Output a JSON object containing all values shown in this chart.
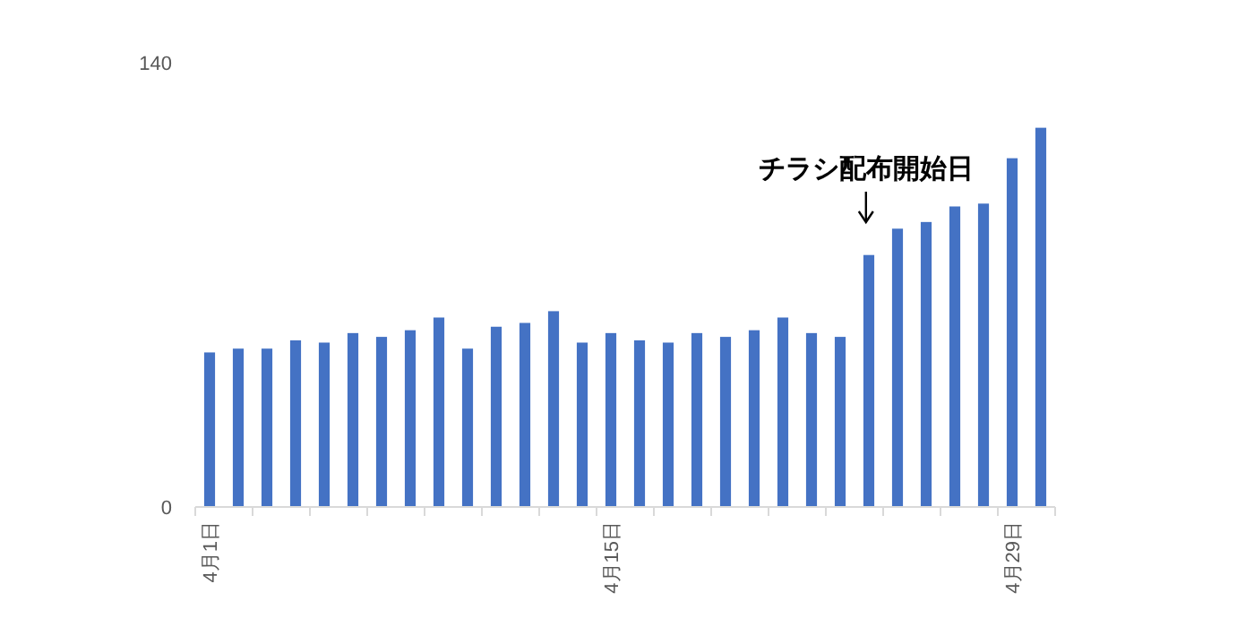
{
  "chart_data": {
    "type": "bar",
    "categories": [
      "4月1日",
      null,
      null,
      null,
      null,
      null,
      null,
      null,
      null,
      null,
      null,
      null,
      null,
      null,
      "4月15日",
      null,
      null,
      null,
      null,
      null,
      null,
      null,
      null,
      null,
      null,
      null,
      null,
      null,
      "4月29日",
      null
    ],
    "values": [
      48.7,
      49.9,
      49.9,
      52.5,
      51.8,
      54.8,
      53.6,
      55.7,
      59.7,
      49.9,
      56.8,
      58.0,
      61.7,
      51.8,
      54.8,
      52.5,
      51.8,
      54.8,
      53.6,
      55.7,
      59.7,
      54.8,
      53.6,
      79.4,
      87.7,
      89.8,
      94.7,
      95.6,
      109.9,
      119.5
    ],
    "color": "#4472c4",
    "ylim": [
      0,
      140
    ],
    "yticks": [
      0,
      140
    ],
    "grid": false,
    "annotations": [
      "チラシ配布開始日"
    ]
  }
}
